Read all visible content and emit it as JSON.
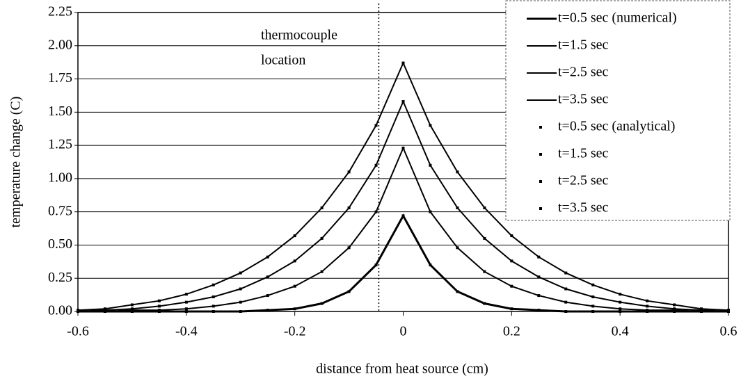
{
  "chart_data": {
    "type": "line",
    "xlabel": "distance from heat source (cm)",
    "ylabel": "temperature change (C)",
    "annotation": {
      "lines": [
        "thermocouple",
        "location"
      ],
      "x": -0.045
    },
    "x": [
      -0.6,
      -0.55,
      -0.5,
      -0.45,
      -0.4,
      -0.35,
      -0.3,
      -0.25,
      -0.2,
      -0.15,
      -0.1,
      -0.05,
      0,
      0.05,
      0.1,
      0.15,
      0.2,
      0.25,
      0.3,
      0.35,
      0.4,
      0.45,
      0.5,
      0.55,
      0.6
    ],
    "series": [
      {
        "name": "t=0.5 sec (numerical)",
        "color": "#000000",
        "mode": "line",
        "values": [
          0,
          0,
          0,
          0,
          0,
          0,
          0,
          0.01,
          0.02,
          0.06,
          0.15,
          0.35,
          0.72,
          0.35,
          0.15,
          0.06,
          0.02,
          0.01,
          0,
          0,
          0,
          0,
          0,
          0,
          0
        ]
      },
      {
        "name": "t=1.5 sec",
        "color": "#000000",
        "mode": "line",
        "values": [
          0,
          0,
          0.01,
          0.01,
          0.02,
          0.04,
          0.07,
          0.12,
          0.19,
          0.3,
          0.48,
          0.75,
          1.23,
          0.75,
          0.48,
          0.3,
          0.19,
          0.12,
          0.07,
          0.04,
          0.02,
          0.01,
          0.01,
          0,
          0
        ]
      },
      {
        "name": "t=2.5 sec",
        "color": "#000000",
        "mode": "line",
        "values": [
          0,
          0.01,
          0.02,
          0.04,
          0.07,
          0.11,
          0.17,
          0.26,
          0.38,
          0.55,
          0.78,
          1.1,
          1.58,
          1.1,
          0.78,
          0.55,
          0.38,
          0.26,
          0.17,
          0.11,
          0.07,
          0.04,
          0.02,
          0.01,
          0
        ]
      },
      {
        "name": "t=3.5 sec",
        "color": "#000000",
        "mode": "line",
        "values": [
          0.01,
          0.02,
          0.05,
          0.08,
          0.13,
          0.2,
          0.29,
          0.41,
          0.57,
          0.78,
          1.05,
          1.4,
          1.87,
          1.4,
          1.05,
          0.78,
          0.57,
          0.41,
          0.29,
          0.2,
          0.13,
          0.08,
          0.05,
          0.02,
          0.01
        ]
      },
      {
        "name": "t=0.5 sec (analytical)",
        "color": "#000000",
        "mode": "markers",
        "values": [
          0,
          0,
          0,
          0,
          0,
          0,
          0,
          0.01,
          0.02,
          0.06,
          0.15,
          0.35,
          0.72,
          0.35,
          0.15,
          0.06,
          0.02,
          0.01,
          0,
          0,
          0,
          0,
          0,
          0,
          0
        ]
      },
      {
        "name": "t=1.5 sec",
        "color": "#000000",
        "mode": "markers",
        "values": [
          0,
          0,
          0.01,
          0.01,
          0.02,
          0.04,
          0.07,
          0.12,
          0.19,
          0.3,
          0.48,
          0.75,
          1.23,
          0.75,
          0.48,
          0.3,
          0.19,
          0.12,
          0.07,
          0.04,
          0.02,
          0.01,
          0.01,
          0,
          0
        ]
      },
      {
        "name": "t=2.5 sec",
        "color": "#000000",
        "mode": "markers",
        "values": [
          0,
          0.01,
          0.02,
          0.04,
          0.07,
          0.11,
          0.17,
          0.26,
          0.38,
          0.55,
          0.78,
          1.1,
          1.58,
          1.1,
          0.78,
          0.55,
          0.38,
          0.26,
          0.17,
          0.11,
          0.07,
          0.04,
          0.02,
          0.01,
          0
        ]
      },
      {
        "name": "t=3.5 sec",
        "color": "#000000",
        "mode": "markers",
        "values": [
          0.01,
          0.02,
          0.05,
          0.08,
          0.13,
          0.2,
          0.29,
          0.41,
          0.57,
          0.78,
          1.05,
          1.4,
          1.87,
          1.4,
          1.05,
          0.78,
          0.57,
          0.41,
          0.29,
          0.2,
          0.13,
          0.08,
          0.05,
          0.02,
          0.01
        ]
      }
    ],
    "xlim": [
      -0.6,
      0.6
    ],
    "xticks": [
      -0.6,
      -0.4,
      -0.2,
      0,
      0.2,
      0.4,
      0.6
    ],
    "ylim": [
      0,
      2.25
    ],
    "yticks": [
      {
        "value": 0,
        "label": "0.00"
      },
      {
        "value": 0.25,
        "label": "0.25"
      },
      {
        "value": 0.5,
        "label": "0.50"
      },
      {
        "value": 0.75,
        "label": "0.75"
      },
      {
        "value": 1,
        "label": "1.00"
      },
      {
        "value": 1.25,
        "label": "1.25"
      },
      {
        "value": 1.5,
        "label": "1.50"
      },
      {
        "value": 1.75,
        "label": "1.75"
      },
      {
        "value": 2,
        "label": "2.00"
      },
      {
        "value": 2.25,
        "label": "2.25"
      }
    ],
    "grid": true,
    "legend": "upper right"
  }
}
